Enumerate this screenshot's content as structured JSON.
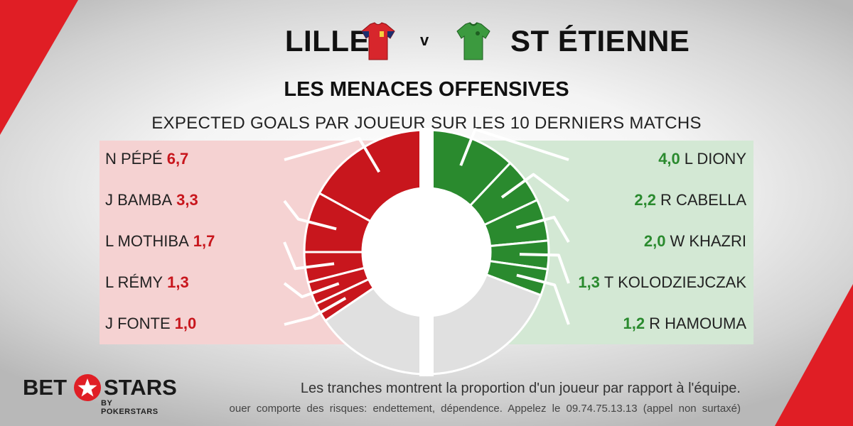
{
  "colors": {
    "home": "#c8161d",
    "away": "#2a8a2e",
    "accent": "#e01e25",
    "rest": "#e0e0e0"
  },
  "match": {
    "home": "LILLE",
    "vs": "v",
    "away": "ST ÉTIENNE"
  },
  "title": "LES MENACES OFFENSIVES",
  "subtitle": "EXPECTED GOALS PAR JOUEUR SUR LES 10 DERNIERS MATCHS",
  "home_players": [
    {
      "name": "N PÉPÉ",
      "xg": "6,7",
      "value": 6.7
    },
    {
      "name": "J BAMBA",
      "xg": "3,3",
      "value": 3.3
    },
    {
      "name": "L MOTHIBA",
      "xg": "1,7",
      "value": 1.7
    },
    {
      "name": "L RÉMY",
      "xg": "1,3",
      "value": 1.3
    },
    {
      "name": "J FONTE",
      "xg": "1,0",
      "value": 1.0
    }
  ],
  "away_players": [
    {
      "name": "L DIONY",
      "xg": "4,0",
      "value": 4.0
    },
    {
      "name": "R CABELLA",
      "xg": "2,2",
      "value": 2.2
    },
    {
      "name": "W KHAZRI",
      "xg": "2,0",
      "value": 2.0
    },
    {
      "name": "T KOLODZIEJCZAK",
      "xg": "1,3",
      "value": 1.3
    },
    {
      "name": "R HAMOUMA",
      "xg": "1,2",
      "value": 1.2
    }
  ],
  "home_share_fractions": [
    0.34,
    0.16,
    0.08,
    0.06,
    0.05
  ],
  "away_share_fractions": [
    0.24,
    0.12,
    0.11,
    0.075,
    0.07
  ],
  "note": "Les tranches montrent la proportion d'un joueur par rapport à l'équipe.",
  "disclaimer": "ouer comporte des risques: endettement, dépendence. Appelez le 09.74.75.13.13 (appel non surtaxé)",
  "brand": {
    "bet": "BET",
    "stars": "STARS",
    "sub": "BY POKERSTARS"
  }
}
